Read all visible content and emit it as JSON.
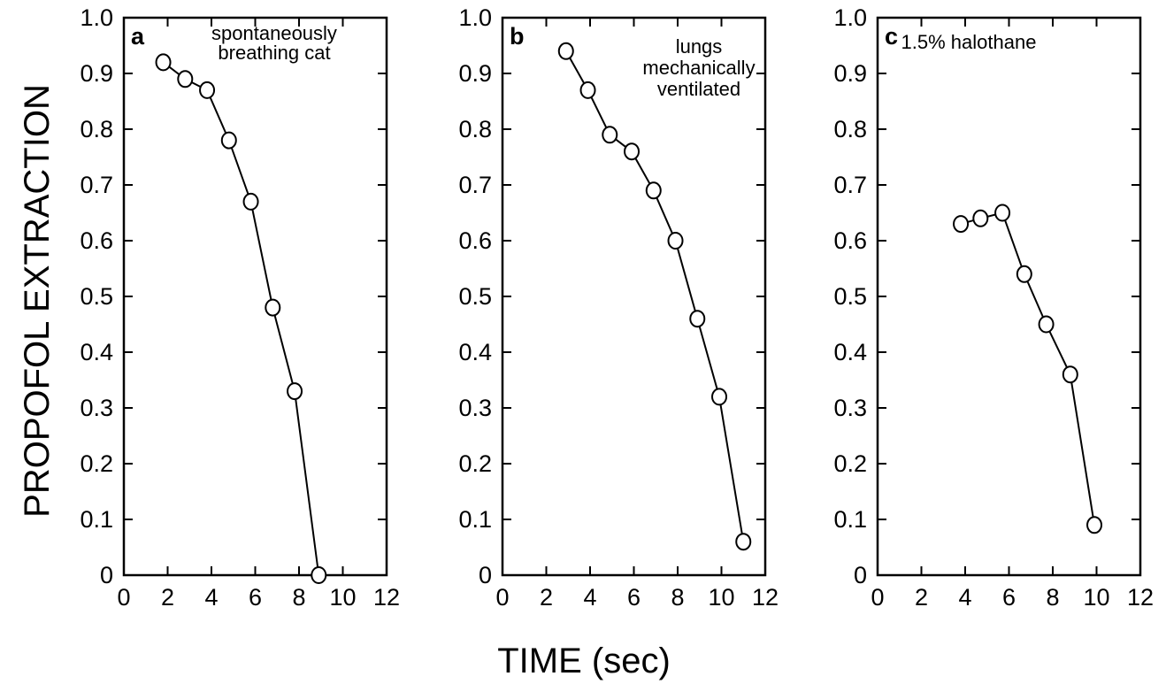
{
  "figure": {
    "ylabel": "PROPOFOL EXTRACTION",
    "xlabel": "TIME (sec)"
  },
  "chart_data": [
    {
      "type": "line",
      "panel": "a",
      "annotation": [
        "spontaneously",
        "breathing cat"
      ],
      "x": [
        1.8,
        2.8,
        3.8,
        4.8,
        5.8,
        6.8,
        7.8,
        8.9
      ],
      "y": [
        0.92,
        0.89,
        0.87,
        0.78,
        0.67,
        0.48,
        0.33,
        0.0
      ],
      "xlim": [
        0,
        12
      ],
      "ylim": [
        0,
        1.0
      ],
      "xticks": [
        "0",
        "2",
        "4",
        "6",
        "8",
        "10",
        "12"
      ],
      "yticks": [
        "0",
        "0.1",
        "0.2",
        "0.3",
        "0.4",
        "0.5",
        "0.6",
        "0.7",
        "0.8",
        "0.9",
        "1.0"
      ],
      "grid": false
    },
    {
      "type": "line",
      "panel": "b",
      "annotation": [
        "lungs",
        "mechanically",
        "ventilated"
      ],
      "x": [
        2.9,
        3.9,
        4.9,
        5.9,
        6.9,
        7.9,
        8.9,
        9.9,
        11.0
      ],
      "y": [
        0.94,
        0.87,
        0.79,
        0.76,
        0.69,
        0.6,
        0.46,
        0.32,
        0.06
      ],
      "xlim": [
        0,
        12
      ],
      "ylim": [
        0,
        1.0
      ],
      "xticks": [
        "0",
        "2",
        "4",
        "6",
        "8",
        "10",
        "12"
      ],
      "yticks": [
        "0",
        "0.1",
        "0.2",
        "0.3",
        "0.4",
        "0.5",
        "0.6",
        "0.7",
        "0.8",
        "0.9",
        "1.0"
      ],
      "grid": false
    },
    {
      "type": "line",
      "panel": "c",
      "annotation": [
        "1.5% halothane"
      ],
      "x": [
        3.8,
        4.7,
        5.7,
        6.7,
        7.7,
        8.8,
        9.9
      ],
      "y": [
        0.63,
        0.64,
        0.65,
        0.54,
        0.45,
        0.36,
        0.09
      ],
      "xlim": [
        0,
        12
      ],
      "ylim": [
        0,
        1.0
      ],
      "xticks": [
        "0",
        "2",
        "4",
        "6",
        "8",
        "10",
        "12"
      ],
      "yticks": [
        "0",
        "0.1",
        "0.2",
        "0.3",
        "0.4",
        "0.5",
        "0.6",
        "0.7",
        "0.8",
        "0.9",
        "1.0"
      ],
      "grid": false
    }
  ]
}
